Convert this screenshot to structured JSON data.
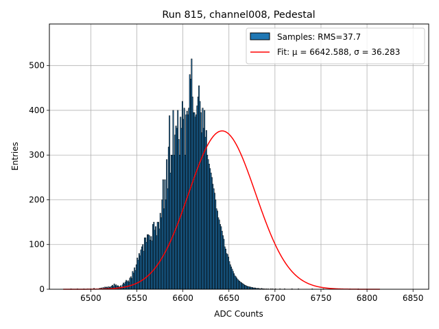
{
  "chart_data": {
    "type": "bar",
    "title": "Run 815, channel008, Pedestal",
    "xlabel": "ADC Counts",
    "ylabel": "Entries",
    "xlim": [
      6455,
      6867
    ],
    "ylim": [
      0,
      593
    ],
    "grid": true,
    "legend_position": "top-right",
    "x_ticks": [
      6500,
      6550,
      6600,
      6650,
      6700,
      6750,
      6800,
      6850
    ],
    "y_ticks": [
      0,
      100,
      200,
      300,
      400,
      500
    ],
    "x_tick_labels": [
      "6500",
      "6550",
      "6600",
      "6650",
      "6700",
      "6750",
      "6800",
      "6850"
    ],
    "y_tick_labels": [
      "0",
      "100",
      "200",
      "300",
      "400",
      "500"
    ],
    "legend": [
      {
        "label": "Samples: RMS=37.7",
        "kind": "patch",
        "color": "#1f77b4"
      },
      {
        "label": "Fit: μ = 6642.588, σ = 36.283",
        "kind": "line",
        "color": "#ff0000"
      }
    ],
    "series": [
      {
        "name": "Samples: RMS=37.7",
        "type": "histogram",
        "color": "#1f77b4",
        "edgecolor": "#000000",
        "bin_start": 6470,
        "bin_width": 1,
        "bin_count": 345,
        "sparse_counts": {
          "6478": 1,
          "6485": 1,
          "6492": 1,
          "6496": 1,
          "6499": 1,
          "6503": 2,
          "6506": 1,
          "6509": 2,
          "6510": 2,
          "6511": 3,
          "6512": 1,
          "6513": 4,
          "6514": 2,
          "6515": 5,
          "6516": 4,
          "6517": 5,
          "6518": 3,
          "6519": 6,
          "6520": 4,
          "6521": 5,
          "6522": 7,
          "6523": 9,
          "6524": 6,
          "6525": 12,
          "6526": 8,
          "6527": 10,
          "6528": 7,
          "6529": 8,
          "6530": 6,
          "6531": 5,
          "6532": 8,
          "6533": 4,
          "6534": 10,
          "6535": 14,
          "6536": 12,
          "6537": 16,
          "6538": 20,
          "6539": 17,
          "6540": 19,
          "6541": 16,
          "6542": 25,
          "6543": 28,
          "6544": 24,
          "6545": 40,
          "6546": 36,
          "6547": 48,
          "6548": 42,
          "6549": 55,
          "6550": 70,
          "6551": 65,
          "6552": 80,
          "6553": 75,
          "6554": 88,
          "6555": 95,
          "6556": 100,
          "6557": 85,
          "6558": 115,
          "6559": 115,
          "6560": 105,
          "6561": 122,
          "6562": 122,
          "6563": 120,
          "6564": 110,
          "6565": 118,
          "6566": 108,
          "6567": 145,
          "6568": 150,
          "6569": 132,
          "6570": 140,
          "6571": 120,
          "6572": 150,
          "6573": 150,
          "6574": 135,
          "6575": 170,
          "6576": 160,
          "6577": 200,
          "6578": 245,
          "6579": 180,
          "6580": 245,
          "6581": 200,
          "6582": 290,
          "6583": 225,
          "6584": 318,
          "6585": 388,
          "6586": 260,
          "6587": 300,
          "6588": 300,
          "6589": 400,
          "6590": 300,
          "6591": 345,
          "6592": 365,
          "6593": 360,
          "6594": 400,
          "6595": 335,
          "6596": 300,
          "6597": 385,
          "6598": 360,
          "6599": 420,
          "6600": 380,
          "6601": 405,
          "6602": 300,
          "6603": 390,
          "6604": 398,
          "6605": 390,
          "6606": 405,
          "6607": 480,
          "6608": 470,
          "6609": 515,
          "6610": 430,
          "6611": 395,
          "6612": 395,
          "6613": 385,
          "6614": 390,
          "6615": 410,
          "6616": 430,
          "6617": 455,
          "6618": 420,
          "6619": 395,
          "6620": 350,
          "6621": 405,
          "6622": 360,
          "6623": 400,
          "6624": 340,
          "6625": 355,
          "6626": 300,
          "6627": 290,
          "6628": 280,
          "6629": 270,
          "6630": 260,
          "6631": 250,
          "6632": 235,
          "6633": 225,
          "6634": 215,
          "6635": 200,
          "6636": 180,
          "6637": 175,
          "6638": 160,
          "6639": 155,
          "6640": 145,
          "6641": 140,
          "6642": 130,
          "6643": 120,
          "6644": 112,
          "6645": 95,
          "6646": 90,
          "6647": 80,
          "6648": 78,
          "6649": 72,
          "6650": 62,
          "6651": 55,
          "6652": 50,
          "6653": 45,
          "6654": 40,
          "6655": 35,
          "6656": 30,
          "6657": 28,
          "6658": 25,
          "6659": 22,
          "6660": 20,
          "6661": 18,
          "6662": 16,
          "6663": 15,
          "6664": 13,
          "6665": 12,
          "6666": 10,
          "6667": 9,
          "6668": 8,
          "6669": 7,
          "6670": 6,
          "6671": 6,
          "6672": 5,
          "6673": 5,
          "6674": 4,
          "6675": 4,
          "6676": 3,
          "6677": 3,
          "6678": 3,
          "6679": 2,
          "6680": 2,
          "6681": 2,
          "6682": 2,
          "6683": 1,
          "6684": 1,
          "6685": 2,
          "6686": 1,
          "6687": 1,
          "6688": 1,
          "6690": 1,
          "6692": 1,
          "6695": 1,
          "6697": 1,
          "6700": 1,
          "6705": 1,
          "6710": 1,
          "6718": 1,
          "6725": 1,
          "6740": 1,
          "6752": 1,
          "6770": 1,
          "6781": 1,
          "6790": 1
        }
      },
      {
        "name": "Fit: μ = 6642.588, σ = 36.283",
        "type": "gaussian",
        "color": "#ff0000",
        "mu": 6642.588,
        "sigma": 36.283,
        "amplitude": 354,
        "x_range": [
          6470,
          6814
        ]
      }
    ]
  }
}
